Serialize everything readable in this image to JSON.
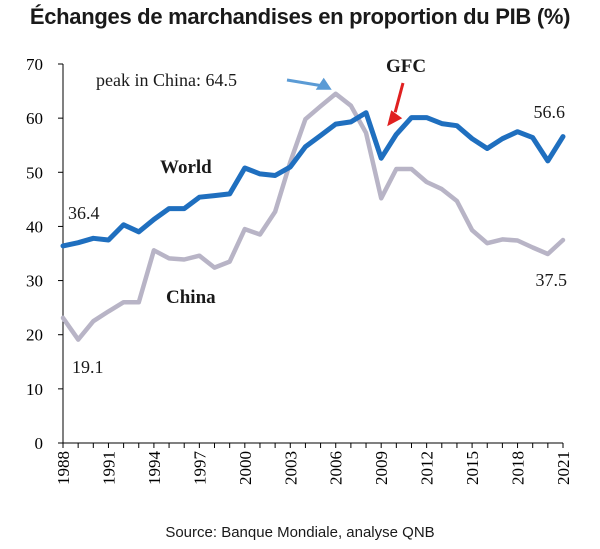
{
  "title": "Échanges de marchandises en proportion du PIB (%)",
  "source": "Source: Banque Mondiale, analyse QNB",
  "colors": {
    "world": "#1f6fbf",
    "china": "#b8b4c6",
    "gfc_arrow": "#e02020",
    "peak_arrow": "#5b9bd5"
  },
  "chart_data": {
    "type": "line",
    "x": [
      1988,
      1989,
      1990,
      1991,
      1992,
      1993,
      1994,
      1995,
      1996,
      1997,
      1998,
      1999,
      2000,
      2001,
      2002,
      2003,
      2004,
      2005,
      2006,
      2007,
      2008,
      2009,
      2010,
      2011,
      2012,
      2013,
      2014,
      2015,
      2016,
      2017,
      2018,
      2019,
      2020,
      2021
    ],
    "xticks": [
      1988,
      1991,
      1994,
      1997,
      2000,
      2003,
      2006,
      2009,
      2012,
      2015,
      2018,
      2021
    ],
    "xtick_labels": [
      "1988",
      "1991",
      "1994",
      "1997",
      "2000",
      "2003",
      "2006",
      "2009",
      "2012",
      "2015",
      "2018",
      "2021"
    ],
    "yticks": [
      0,
      10,
      20,
      30,
      40,
      50,
      60,
      70
    ],
    "ytick_labels": [
      "0",
      "10",
      "20",
      "30",
      "40",
      "50",
      "60",
      "70"
    ],
    "ylim": [
      0,
      70
    ],
    "xlim": [
      1988,
      2021
    ],
    "grid": false,
    "series": [
      {
        "name": "World",
        "key": "world",
        "values": [
          36.4,
          37.0,
          37.8,
          37.5,
          40.3,
          39.0,
          41.3,
          43.3,
          43.3,
          45.4,
          45.7,
          46.0,
          50.8,
          49.7,
          49.4,
          51.0,
          54.7,
          56.8,
          58.9,
          59.3,
          61.0,
          52.6,
          57.0,
          60.1,
          60.1,
          59.0,
          58.6,
          56.2,
          54.4,
          56.2,
          57.5,
          56.4,
          52.1,
          56.6
        ]
      },
      {
        "name": "China",
        "key": "china",
        "values": [
          23.1,
          19.1,
          22.5,
          24.3,
          26.0,
          26.0,
          35.6,
          34.1,
          33.9,
          34.6,
          32.4,
          33.5,
          39.5,
          38.5,
          42.7,
          51.9,
          59.8,
          62.2,
          64.5,
          62.3,
          57.3,
          45.2,
          50.6,
          50.6,
          48.2,
          46.9,
          44.7,
          39.3,
          36.9,
          37.6,
          37.4,
          36.1,
          34.9,
          37.5
        ]
      }
    ],
    "annotations": {
      "world_label": "World",
      "china_label": "China",
      "world_start": "36.4",
      "world_end": "56.6",
      "china_min": "19.1",
      "china_end": "37.5",
      "peak": "peak in China: 64.5",
      "gfc": "GFC"
    }
  }
}
